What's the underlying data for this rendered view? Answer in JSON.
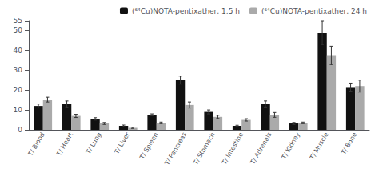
{
  "chart_data": {
    "type": "bar",
    "categories": [
      "T/ Blood",
      "T/ Heart",
      "T/ Lung",
      "T/ Liver",
      "T/ Spleen",
      "T/ Pancreas",
      "T/ Stomach",
      "T/ Intestine",
      "T/ Adrenals",
      "T/ Kidney",
      "T/ Muscle",
      "T/ Bone"
    ],
    "series": [
      {
        "name": "(⁶⁴Cu)NOTA-pentixather, 1.5 h",
        "color": "#111111",
        "values": [
          12.0,
          13.0,
          5.5,
          2.0,
          7.5,
          25.0,
          9.0,
          2.0,
          13.0,
          3.2,
          49.0,
          21.5
        ],
        "errors": [
          1.0,
          1.5,
          0.6,
          0.4,
          0.5,
          2.0,
          1.0,
          0.3,
          1.5,
          0.5,
          6.0,
          2.0
        ]
      },
      {
        "name": "(⁶⁴Cu)NOTA-pentixather, 24 h",
        "color": "#aaaaaa",
        "values": [
          15.2,
          7.0,
          3.2,
          1.0,
          3.5,
          12.5,
          6.5,
          5.0,
          7.5,
          3.5,
          37.5,
          22.0
        ],
        "errors": [
          1.2,
          0.8,
          0.5,
          0.3,
          0.4,
          1.5,
          0.8,
          0.6,
          1.2,
          0.4,
          4.5,
          3.0
        ]
      }
    ],
    "ylim": [
      0,
      55
    ],
    "yticks": [
      0,
      10,
      20,
      30,
      40,
      50
    ],
    "grid": false,
    "legend": "upper right"
  }
}
